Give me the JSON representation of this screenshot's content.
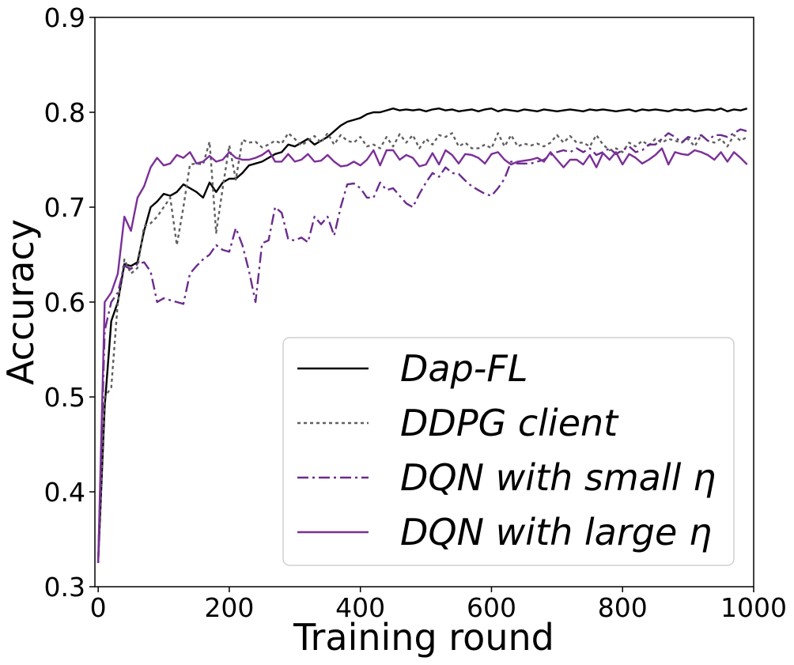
{
  "chart_data": {
    "type": "line",
    "title": "",
    "xlabel": "Training round",
    "ylabel": "Accuracy",
    "xlim": [
      -5,
      1000
    ],
    "ylim": [
      0.3,
      0.9
    ],
    "xticks": [
      0,
      200,
      400,
      600,
      800,
      1000
    ],
    "yticks": [
      0.3,
      0.4,
      0.5,
      0.6,
      0.7,
      0.8,
      0.9
    ],
    "xtick_labels": [
      "0",
      "200",
      "400",
      "600",
      "800",
      "1000"
    ],
    "ytick_labels": [
      "0.3",
      "0.4",
      "0.5",
      "0.6",
      "0.7",
      "0.8",
      "0.9"
    ],
    "grid": false,
    "legend_position": "lower-right",
    "x": [
      0,
      10,
      20,
      30,
      40,
      50,
      60,
      70,
      80,
      90,
      100,
      110,
      120,
      130,
      140,
      150,
      160,
      170,
      180,
      190,
      200,
      210,
      220,
      230,
      240,
      250,
      260,
      270,
      280,
      290,
      300,
      310,
      320,
      330,
      340,
      350,
      360,
      370,
      380,
      390,
      400,
      410,
      420,
      430,
      440,
      450,
      460,
      470,
      480,
      490,
      500,
      510,
      520,
      530,
      540,
      550,
      560,
      570,
      580,
      590,
      600,
      610,
      620,
      630,
      640,
      650,
      660,
      670,
      680,
      690,
      700,
      710,
      720,
      730,
      740,
      750,
      760,
      770,
      780,
      790,
      800,
      810,
      820,
      830,
      840,
      850,
      860,
      870,
      880,
      890,
      900,
      910,
      920,
      930,
      940,
      950,
      960,
      970,
      980,
      990
    ],
    "series": [
      {
        "name": "Dap-FL",
        "color": "#000000",
        "dash": "solid",
        "values": [
          0.325,
          0.49,
          0.58,
          0.6,
          0.64,
          0.638,
          0.642,
          0.675,
          0.7,
          0.706,
          0.714,
          0.712,
          0.716,
          0.724,
          0.72,
          0.716,
          0.71,
          0.726,
          0.716,
          0.726,
          0.73,
          0.73,
          0.736,
          0.744,
          0.746,
          0.748,
          0.752,
          0.756,
          0.758,
          0.766,
          0.764,
          0.768,
          0.772,
          0.766,
          0.77,
          0.774,
          0.78,
          0.786,
          0.79,
          0.792,
          0.794,
          0.798,
          0.8,
          0.8,
          0.802,
          0.804,
          0.802,
          0.803,
          0.802,
          0.803,
          0.801,
          0.803,
          0.804,
          0.802,
          0.803,
          0.801,
          0.802,
          0.803,
          0.801,
          0.803,
          0.804,
          0.801,
          0.803,
          0.802,
          0.801,
          0.803,
          0.802,
          0.801,
          0.803,
          0.802,
          0.801,
          0.802,
          0.803,
          0.802,
          0.801,
          0.803,
          0.802,
          0.803,
          0.802,
          0.801,
          0.802,
          0.803,
          0.801,
          0.803,
          0.802,
          0.803,
          0.802,
          0.801,
          0.803,
          0.802,
          0.803,
          0.801,
          0.802,
          0.803,
          0.802,
          0.804,
          0.801,
          0.803,
          0.802,
          0.804
        ]
      },
      {
        "name": "DDPG client",
        "color": "#606060",
        "dash": "dotted",
        "values": [
          0.325,
          0.5,
          0.51,
          0.6,
          0.645,
          0.63,
          0.636,
          0.68,
          0.683,
          0.69,
          0.7,
          0.71,
          0.66,
          0.7,
          0.745,
          0.746,
          0.745,
          0.769,
          0.673,
          0.72,
          0.765,
          0.729,
          0.771,
          0.768,
          0.769,
          0.763,
          0.766,
          0.77,
          0.767,
          0.778,
          0.772,
          0.765,
          0.77,
          0.775,
          0.768,
          0.778,
          0.766,
          0.776,
          0.77,
          0.768,
          0.774,
          0.764,
          0.766,
          0.762,
          0.774,
          0.764,
          0.777,
          0.768,
          0.776,
          0.762,
          0.772,
          0.766,
          0.776,
          0.774,
          0.778,
          0.764,
          0.768,
          0.762,
          0.762,
          0.766,
          0.762,
          0.778,
          0.764,
          0.776,
          0.764,
          0.767,
          0.765,
          0.767,
          0.764,
          0.768,
          0.776,
          0.768,
          0.775,
          0.768,
          0.768,
          0.764,
          0.776,
          0.766,
          0.76,
          0.762,
          0.758,
          0.768,
          0.764,
          0.77,
          0.765,
          0.772,
          0.768,
          0.772,
          0.77,
          0.768,
          0.772,
          0.764,
          0.776,
          0.77,
          0.768,
          0.772,
          0.764,
          0.776,
          0.77,
          0.774
        ]
      },
      {
        "name": "DQN with small η",
        "color": "#6b2c8c",
        "dash": "dashdot",
        "values": [
          0.325,
          0.57,
          0.6,
          0.61,
          0.638,
          0.635,
          0.64,
          0.642,
          0.632,
          0.6,
          0.604,
          0.602,
          0.6,
          0.598,
          0.63,
          0.638,
          0.645,
          0.65,
          0.66,
          0.655,
          0.653,
          0.678,
          0.66,
          0.633,
          0.6,
          0.662,
          0.665,
          0.7,
          0.694,
          0.666,
          0.665,
          0.668,
          0.663,
          0.69,
          0.682,
          0.69,
          0.67,
          0.7,
          0.724,
          0.725,
          0.72,
          0.71,
          0.71,
          0.726,
          0.718,
          0.72,
          0.712,
          0.704,
          0.7,
          0.714,
          0.726,
          0.736,
          0.732,
          0.742,
          0.736,
          0.735,
          0.728,
          0.722,
          0.718,
          0.714,
          0.712,
          0.72,
          0.73,
          0.748,
          0.746,
          0.746,
          0.746,
          0.748,
          0.75,
          0.755,
          0.758,
          0.76,
          0.758,
          0.762,
          0.758,
          0.762,
          0.755,
          0.758,
          0.762,
          0.756,
          0.76,
          0.764,
          0.758,
          0.76,
          0.766,
          0.766,
          0.772,
          0.778,
          0.774,
          0.768,
          0.774,
          0.772,
          0.776,
          0.77,
          0.776,
          0.776,
          0.774,
          0.778,
          0.782,
          0.78
        ]
      },
      {
        "name": "DQN with large η",
        "color": "#7b2f98",
        "dash": "solid",
        "values": [
          0.325,
          0.6,
          0.61,
          0.63,
          0.69,
          0.675,
          0.71,
          0.722,
          0.742,
          0.752,
          0.744,
          0.746,
          0.755,
          0.752,
          0.758,
          0.746,
          0.748,
          0.754,
          0.748,
          0.75,
          0.758,
          0.752,
          0.75,
          0.75,
          0.752,
          0.755,
          0.76,
          0.748,
          0.748,
          0.756,
          0.748,
          0.75,
          0.756,
          0.748,
          0.749,
          0.755,
          0.748,
          0.743,
          0.744,
          0.748,
          0.744,
          0.75,
          0.76,
          0.744,
          0.76,
          0.76,
          0.75,
          0.755,
          0.752,
          0.743,
          0.745,
          0.757,
          0.745,
          0.76,
          0.755,
          0.746,
          0.756,
          0.755,
          0.752,
          0.746,
          0.756,
          0.758,
          0.75,
          0.745,
          0.748,
          0.749,
          0.75,
          0.752,
          0.748,
          0.758,
          0.75,
          0.742,
          0.75,
          0.75,
          0.745,
          0.755,
          0.742,
          0.757,
          0.75,
          0.758,
          0.745,
          0.756,
          0.752,
          0.746,
          0.75,
          0.755,
          0.762,
          0.745,
          0.758,
          0.756,
          0.755,
          0.76,
          0.758,
          0.755,
          0.75,
          0.758,
          0.748,
          0.758,
          0.752,
          0.745
        ]
      }
    ]
  }
}
